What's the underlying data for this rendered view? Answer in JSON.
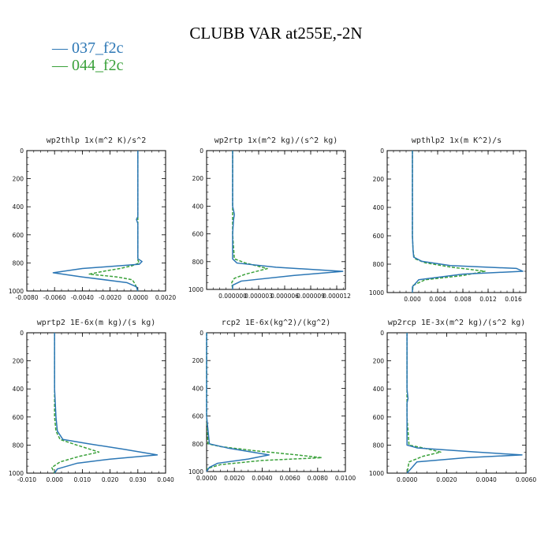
{
  "title": "CLUBB VAR at255E,-2N",
  "legend": [
    {
      "label": "— 037_f2c",
      "color": "#2c77b5"
    },
    {
      "label": "— 044_f2c",
      "color": "#3aa13a"
    }
  ],
  "chart_data": [
    {
      "type": "line",
      "title": "wp2thlp  1x(m^2 K)/s^2",
      "xlim": [
        -0.008,
        0.002
      ],
      "xticks": [
        -0.008,
        -0.006,
        -0.004,
        -0.002,
        0.0,
        0.002
      ],
      "xtick_labels": [
        "-0.0080",
        "-0.0060",
        "-0.0040",
        "-0.0020",
        "0.0000",
        "0.0020"
      ],
      "ylim": [
        0,
        1000
      ],
      "yticks": [
        0,
        200,
        400,
        600,
        800,
        1000
      ],
      "ytick_labels": [
        "0",
        "200",
        "400",
        "600",
        "800",
        "1000"
      ],
      "series": [
        {
          "name": "037_f2c",
          "x": [
            0.0,
            0.0,
            0.0,
            0.0,
            0.0,
            -0.0001,
            0.0,
            0.0,
            0.0,
            0.0003,
            0.0001,
            -0.004,
            -0.0061,
            -0.004,
            -0.0008,
            -0.0001,
            0.0
          ],
          "y": [
            0,
            200,
            400,
            450,
            470,
            490,
            520,
            700,
            770,
            790,
            810,
            840,
            870,
            900,
            940,
            970,
            1000
          ]
        },
        {
          "name": "044_f2c",
          "x": [
            0.0,
            0.0,
            0.0,
            0.0,
            0.0,
            0.0,
            0.0001,
            -0.0004,
            -0.0013,
            -0.0025,
            -0.0035,
            -0.0015,
            -0.0004,
            -0.0002,
            0.0
          ],
          "y": [
            0,
            200,
            400,
            600,
            700,
            780,
            800,
            820,
            840,
            860,
            880,
            900,
            920,
            950,
            1000
          ]
        }
      ]
    },
    {
      "type": "line",
      "title": "wp2rtp  1x(m^2 kg)/(s^2 kg)",
      "xlim": [
        -3e-06,
        1.3e-05
      ],
      "xticks": [
        0.0,
        3e-06,
        6e-06,
        9e-06,
        1.2e-05
      ],
      "xtick_labels": [
        "0.000000",
        "0.000003",
        "0.000006",
        "0.000009",
        "0.000012"
      ],
      "ylim": [
        0,
        1000
      ],
      "yticks": [
        0,
        200,
        400,
        600,
        800,
        1000
      ],
      "ytick_labels": [
        "0",
        "200",
        "400",
        "600",
        "800",
        "1000"
      ],
      "series": [
        {
          "name": "037_f2c",
          "x": [
            0.0,
            0.0,
            0.0,
            2e-07,
            1e-07,
            0.0,
            0.0,
            5e-07,
            5e-06,
            1.27e-05,
            7e-06,
            1e-06,
            0.0,
            0.0
          ],
          "y": [
            0,
            200,
            400,
            460,
            500,
            600,
            780,
            810,
            840,
            870,
            900,
            940,
            970,
            1000
          ]
        },
        {
          "name": "044_f2c",
          "x": [
            0.0,
            0.0,
            0.0,
            0.0,
            2e-07,
            1.5e-06,
            4e-06,
            1.5e-06,
            2e-07,
            -1e-07,
            0.0
          ],
          "y": [
            0,
            200,
            400,
            600,
            780,
            810,
            850,
            890,
            920,
            950,
            1000
          ]
        }
      ]
    },
    {
      "type": "line",
      "title": "wpthlp2  1x(m K^2)/s",
      "xlim": [
        -0.004,
        0.018
      ],
      "xticks": [
        0.0,
        0.004,
        0.008,
        0.012,
        0.016
      ],
      "xtick_labels": [
        "0.000",
        "0.004",
        "0.008",
        "0.012",
        "0.016"
      ],
      "ylim": [
        0,
        1000
      ],
      "yticks": [
        0,
        200,
        400,
        600,
        800,
        1000
      ],
      "ytick_labels": [
        "0",
        "200",
        "400",
        "600",
        "800",
        "1000"
      ],
      "series": [
        {
          "name": "037_f2c",
          "x": [
            0.0,
            0.0,
            0.0,
            0.0,
            0.0001,
            0.0002,
            0.0015,
            0.006,
            0.0165,
            0.0175,
            0.008,
            0.001,
            0.0,
            0.0
          ],
          "y": [
            0,
            200,
            400,
            600,
            700,
            750,
            780,
            810,
            830,
            850,
            870,
            910,
            960,
            1000
          ]
        },
        {
          "name": "044_f2c",
          "x": [
            0.0,
            0.0,
            0.0,
            0.0,
            0.0001,
            0.0003,
            0.002,
            0.006,
            0.0115,
            0.008,
            0.002,
            0.0001,
            0.0
          ],
          "y": [
            0,
            200,
            400,
            600,
            700,
            760,
            790,
            820,
            850,
            880,
            910,
            950,
            1000
          ]
        }
      ]
    },
    {
      "type": "line",
      "title": "wprtp2  1E-6x(m kg)/(s kg)",
      "xlim": [
        -0.01,
        0.04
      ],
      "xticks": [
        -0.01,
        0.0,
        0.01,
        0.02,
        0.03,
        0.04
      ],
      "xtick_labels": [
        "-0.010",
        "0.000",
        "0.010",
        "0.020",
        "0.030",
        "0.040"
      ],
      "ylim": [
        0,
        1000
      ],
      "yticks": [
        0,
        200,
        400,
        600,
        800,
        1000
      ],
      "ytick_labels": [
        "0",
        "200",
        "400",
        "600",
        "800",
        "1000"
      ],
      "series": [
        {
          "name": "037_f2c",
          "x": [
            0.0,
            0.0,
            0.0,
            0.0005,
            0.001,
            0.003,
            0.012,
            0.025,
            0.037,
            0.02,
            0.008,
            0.001,
            0.0
          ],
          "y": [
            0,
            200,
            400,
            600,
            700,
            760,
            790,
            830,
            870,
            900,
            930,
            970,
            1000
          ]
        },
        {
          "name": "044_f2c",
          "x": [
            0.0,
            0.0,
            0.0,
            0.0,
            0.0005,
            0.002,
            0.008,
            0.016,
            0.009,
            0.002,
            -0.001,
            0.0
          ],
          "y": [
            0,
            200,
            400,
            600,
            700,
            760,
            800,
            850,
            880,
            920,
            960,
            1000
          ]
        }
      ]
    },
    {
      "type": "line",
      "title": "rcp2  1E-6x(kg^2)/(kg^2)",
      "xlim": [
        0.0,
        0.01
      ],
      "xticks": [
        0.0,
        0.002,
        0.004,
        0.006,
        0.008,
        0.01
      ],
      "xtick_labels": [
        "0.0000",
        "0.0020",
        "0.0040",
        "0.0060",
        "0.0080",
        "0.0100"
      ],
      "ylim": [
        0,
        1000
      ],
      "yticks": [
        0,
        200,
        400,
        600,
        800,
        1000
      ],
      "ytick_labels": [
        "0",
        "200",
        "400",
        "600",
        "800",
        "1000"
      ],
      "series": [
        {
          "name": "037_f2c",
          "x": [
            0.0,
            0.0,
            0.0,
            0.0,
            0.0002,
            0.0015,
            0.0045,
            0.003,
            0.0008,
            0.0002,
            0.0
          ],
          "y": [
            0,
            200,
            400,
            600,
            800,
            830,
            880,
            910,
            940,
            970,
            1000
          ]
        },
        {
          "name": "044_f2c",
          "x": [
            0.0,
            0.0,
            0.0,
            0.0,
            0.0001,
            0.001,
            0.0035,
            0.0065,
            0.0083,
            0.004,
            0.001,
            0.0
          ],
          "y": [
            0,
            200,
            400,
            600,
            800,
            820,
            850,
            880,
            900,
            920,
            950,
            980
          ]
        }
      ]
    },
    {
      "type": "line",
      "title": "wp2rcp  1E-3x(m^2 kg)/(s^2 kg)",
      "xlim": [
        -0.001,
        0.006
      ],
      "xticks": [
        0.0,
        0.002,
        0.004,
        0.006
      ],
      "xtick_labels": [
        "0.0000",
        "0.0020",
        "0.0040",
        "0.0060"
      ],
      "ylim": [
        0,
        1000
      ],
      "yticks": [
        0,
        200,
        400,
        600,
        800,
        1000
      ],
      "ytick_labels": [
        "0",
        "200",
        "400",
        "600",
        "800",
        "1000"
      ],
      "series": [
        {
          "name": "037_f2c",
          "x": [
            0.0,
            0.0,
            0.0,
            5e-05,
            0.0,
            0.0,
            0.0005,
            0.0035,
            0.0058,
            0.003,
            0.0005,
            0.0
          ],
          "y": [
            0,
            200,
            400,
            470,
            500,
            800,
            820,
            850,
            870,
            890,
            920,
            1000
          ]
        },
        {
          "name": "044_f2c",
          "x": [
            0.0,
            0.0,
            0.0,
            0.0,
            0.0001,
            0.0008,
            0.0017,
            0.0008,
            0.0001,
            0.0
          ],
          "y": [
            0,
            200,
            400,
            600,
            800,
            820,
            850,
            880,
            920,
            1000
          ]
        }
      ]
    }
  ]
}
